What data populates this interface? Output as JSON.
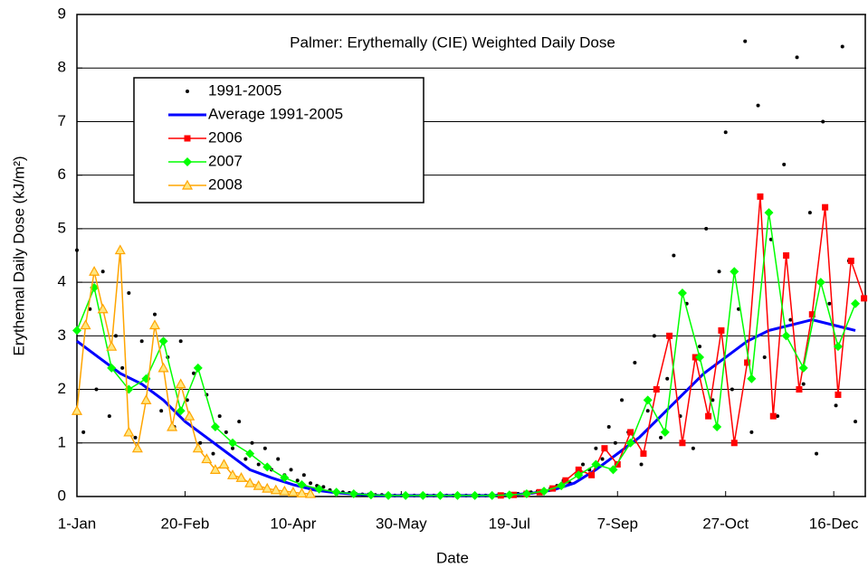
{
  "chart_data": {
    "type": "line",
    "title": "Palmer: Erythemally (CIE) Weighted Daily Dose",
    "x_label": "Date",
    "y_label": "Erythemal Daily Dose (kJ/m²)",
    "xlim": [
      0,
      365
    ],
    "xticks": [
      {
        "value": 0,
        "label": "1-Jan"
      },
      {
        "value": 50,
        "label": "20-Feb"
      },
      {
        "value": 100,
        "label": "10-Apr"
      },
      {
        "value": 150,
        "label": "30-May"
      },
      {
        "value": 200,
        "label": "19-Jul"
      },
      {
        "value": 250,
        "label": "7-Sep"
      },
      {
        "value": 300,
        "label": "27-Oct"
      },
      {
        "value": 350,
        "label": "16-Dec"
      }
    ],
    "ylim": [
      0,
      9
    ],
    "yticks": [
      0,
      1,
      2,
      3,
      4,
      5,
      6,
      7,
      8,
      9
    ],
    "grid": true,
    "series": [
      {
        "name": "1991-2005",
        "color": "#000000",
        "marker": "dot",
        "line": false,
        "x": [
          0,
          3,
          6,
          9,
          12,
          15,
          18,
          21,
          24,
          27,
          30,
          33,
          36,
          39,
          42,
          45,
          48,
          51,
          54,
          57,
          60,
          63,
          66,
          69,
          72,
          75,
          78,
          81,
          84,
          87,
          90,
          93,
          96,
          99,
          102,
          105,
          108,
          111,
          114,
          117,
          120,
          123,
          126,
          129,
          132,
          135,
          138,
          141,
          144,
          147,
          150,
          153,
          156,
          159,
          162,
          165,
          168,
          171,
          174,
          177,
          180,
          183,
          186,
          189,
          192,
          195,
          198,
          201,
          204,
          207,
          210,
          213,
          216,
          219,
          222,
          225,
          228,
          231,
          234,
          237,
          240,
          243,
          246,
          249,
          252,
          255,
          258,
          261,
          264,
          267,
          270,
          273,
          276,
          279,
          282,
          285,
          288,
          291,
          294,
          297,
          300,
          303,
          306,
          309,
          312,
          315,
          318,
          321,
          324,
          327,
          330,
          333,
          336,
          339,
          342,
          345,
          348,
          351,
          354,
          357,
          360
        ],
        "values": [
          4.6,
          1.2,
          3.5,
          2.0,
          4.2,
          1.5,
          3.0,
          2.4,
          3.8,
          1.1,
          2.9,
          2.2,
          3.4,
          1.6,
          2.6,
          1.3,
          2.9,
          1.8,
          2.3,
          1.0,
          1.9,
          0.8,
          1.5,
          1.2,
          0.9,
          1.4,
          0.7,
          1.0,
          0.6,
          0.9,
          0.5,
          0.7,
          0.4,
          0.5,
          0.3,
          0.4,
          0.25,
          0.2,
          0.18,
          0.12,
          0.1,
          0.08,
          0.07,
          0.05,
          0.04,
          0.04,
          0.03,
          0.03,
          0.02,
          0.02,
          0.02,
          0.02,
          0.02,
          0.02,
          0.02,
          0.02,
          0.02,
          0.02,
          0.02,
          0.02,
          0.02,
          0.02,
          0.02,
          0.02,
          0.02,
          0.03,
          0.03,
          0.04,
          0.05,
          0.06,
          0.08,
          0.1,
          0.12,
          0.15,
          0.2,
          0.3,
          0.25,
          0.4,
          0.6,
          0.5,
          0.9,
          0.7,
          1.3,
          1.0,
          1.8,
          1.2,
          2.5,
          0.6,
          1.6,
          3.0,
          1.1,
          2.2,
          4.5,
          1.5,
          3.6,
          0.9,
          2.8,
          5.0,
          1.8,
          4.2,
          6.8,
          2.0,
          3.5,
          8.5,
          1.2,
          7.3,
          2.6,
          4.8,
          1.5,
          6.2,
          3.3,
          8.2,
          2.1,
          5.3,
          0.8,
          7.0,
          3.6,
          1.7,
          8.4,
          4.4,
          1.4
        ]
      },
      {
        "name": "Average 1991-2005",
        "color": "#0000ff",
        "marker": "none",
        "line": true,
        "x": [
          0,
          10,
          20,
          30,
          40,
          50,
          60,
          70,
          80,
          90,
          100,
          110,
          120,
          130,
          140,
          150,
          160,
          170,
          180,
          190,
          200,
          210,
          220,
          230,
          240,
          250,
          260,
          270,
          280,
          290,
          300,
          310,
          320,
          330,
          340,
          350,
          360
        ],
        "values": [
          2.9,
          2.6,
          2.3,
          2.1,
          1.8,
          1.4,
          1.1,
          0.8,
          0.5,
          0.35,
          0.22,
          0.12,
          0.07,
          0.04,
          0.02,
          0.02,
          0.02,
          0.02,
          0.02,
          0.02,
          0.03,
          0.06,
          0.12,
          0.25,
          0.5,
          0.8,
          1.1,
          1.5,
          1.9,
          2.3,
          2.6,
          2.9,
          3.1,
          3.2,
          3.3,
          3.2,
          3.1
        ]
      },
      {
        "name": "2006",
        "color": "#ff0000",
        "marker": "square",
        "line": true,
        "x": [
          196,
          202,
          208,
          214,
          220,
          226,
          232,
          238,
          244,
          250,
          256,
          262,
          268,
          274,
          280,
          286,
          292,
          298,
          304,
          310,
          316,
          322,
          328,
          334,
          340,
          346,
          352,
          358,
          364
        ],
        "values": [
          0.02,
          0.03,
          0.05,
          0.08,
          0.15,
          0.3,
          0.5,
          0.4,
          0.9,
          0.6,
          1.2,
          0.8,
          2.0,
          3.0,
          1.0,
          2.6,
          1.5,
          3.1,
          1.0,
          2.5,
          5.6,
          1.5,
          4.5,
          2.0,
          3.4,
          5.4,
          1.9,
          4.4,
          3.7
        ]
      },
      {
        "name": "2007",
        "color": "#00ff00",
        "marker": "diamond",
        "line": true,
        "x": [
          0,
          8,
          16,
          24,
          32,
          40,
          48,
          56,
          64,
          72,
          80,
          88,
          96,
          104,
          112,
          120,
          128,
          136,
          144,
          152,
          160,
          168,
          176,
          184,
          192,
          200,
          208,
          216,
          224,
          232,
          240,
          248,
          256,
          264,
          272,
          280,
          288,
          296,
          304,
          312,
          320,
          328,
          336,
          344,
          352,
          360
        ],
        "values": [
          3.1,
          3.9,
          2.4,
          2.0,
          2.2,
          2.9,
          1.6,
          2.4,
          1.3,
          1.0,
          0.8,
          0.55,
          0.35,
          0.22,
          0.14,
          0.08,
          0.05,
          0.03,
          0.02,
          0.02,
          0.02,
          0.02,
          0.02,
          0.02,
          0.02,
          0.03,
          0.05,
          0.1,
          0.2,
          0.4,
          0.6,
          0.5,
          1.0,
          1.8,
          1.2,
          3.8,
          2.6,
          1.3,
          4.2,
          2.2,
          5.3,
          3.0,
          2.4,
          4.0,
          2.8,
          3.6
        ]
      },
      {
        "name": "2008",
        "color": "#ffa500",
        "marker": "triangle",
        "line": true,
        "x": [
          0,
          4,
          8,
          12,
          16,
          20,
          24,
          28,
          32,
          36,
          40,
          44,
          48,
          52,
          56,
          60,
          64,
          68,
          72,
          76,
          80,
          84,
          88,
          92,
          96,
          100,
          104,
          108
        ],
        "values": [
          1.6,
          3.2,
          4.2,
          3.5,
          2.8,
          4.6,
          1.2,
          0.9,
          1.8,
          3.2,
          2.4,
          1.3,
          2.1,
          1.5,
          0.9,
          0.7,
          0.5,
          0.6,
          0.4,
          0.35,
          0.25,
          0.2,
          0.15,
          0.12,
          0.1,
          0.08,
          0.06,
          0.05
        ]
      }
    ]
  }
}
